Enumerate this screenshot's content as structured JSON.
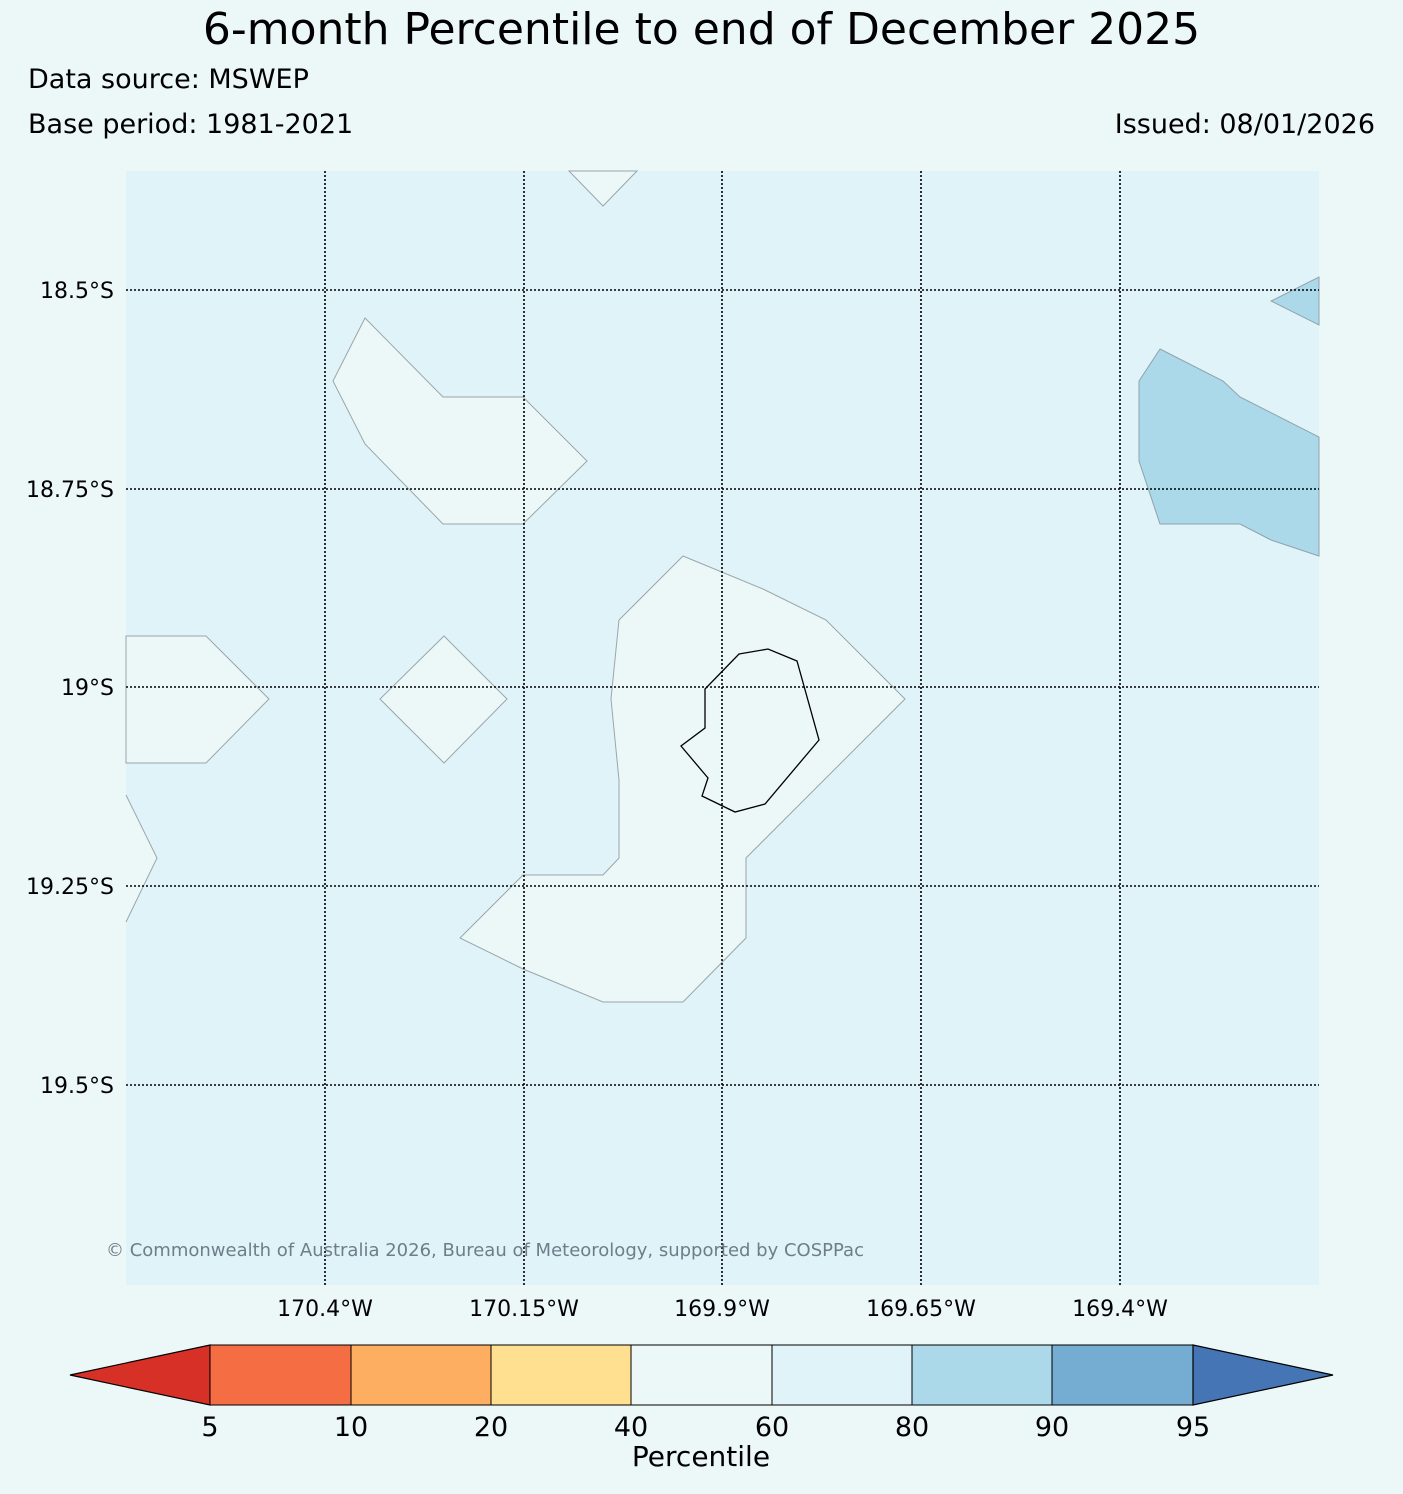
{
  "title": "6-month Percentile to end of December 2025",
  "data_source": "Data source: MSWEP",
  "base_period": "Base period: 1981-2021",
  "issued": "Issued: 08/01/2026",
  "copyright": "© Commonwealth of Australia 2026, Bureau of Meteorology, supported by COSPPac",
  "map": {
    "lat_labels": [
      "18.5°S",
      "18.75°S",
      "19°S",
      "19.25°S",
      "19.5°S"
    ],
    "lon_labels": [
      "170.4°W",
      "170.15°W",
      "169.9°W",
      "169.65°W",
      "169.4°W"
    ],
    "background_class": "60-80",
    "regions": [
      {
        "name": "40-60 patch north-west"
      },
      {
        "name": "40-60 patch west diamond"
      },
      {
        "name": "40-60 patch west edge"
      },
      {
        "name": "40-60 patch around island"
      },
      {
        "name": "80-90 patch east"
      },
      {
        "name": "80-90 patch north-east"
      }
    ],
    "island": "Niue coastline"
  },
  "colorbar": {
    "title": "Percentile",
    "ticks": [
      "5",
      "10",
      "20",
      "40",
      "60",
      "80",
      "90",
      "95"
    ],
    "colors": [
      "#d73027",
      "#f46d43",
      "#fdae61",
      "#fee090",
      "#e9f6f8",
      "#e0f3f8",
      "#abd9e9",
      "#74add1",
      "#4575b4"
    ]
  }
}
